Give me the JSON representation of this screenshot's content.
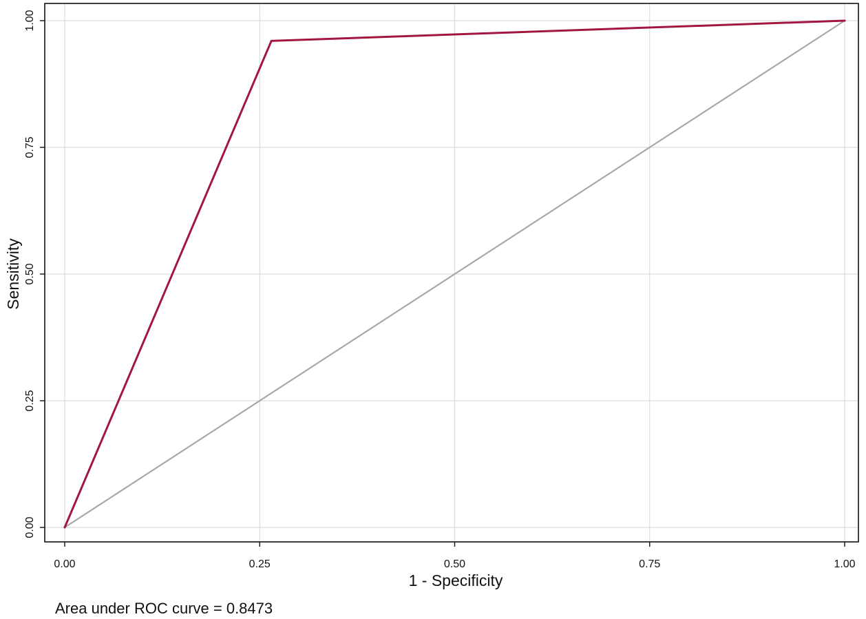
{
  "chart_data": {
    "type": "line",
    "title": "",
    "xlabel": "1 - Specificity",
    "ylabel": "Sensitivity",
    "xlim": [
      0,
      1
    ],
    "ylim": [
      0,
      1
    ],
    "x_ticks": [
      "0.00",
      "0.25",
      "0.50",
      "0.75",
      "1.00"
    ],
    "y_ticks": [
      "0.00",
      "0.25",
      "0.50",
      "0.75",
      "1.00"
    ],
    "grid": true,
    "legend": "none",
    "series": [
      {
        "role": "roc-curve",
        "color": "#a3163f",
        "x": [
          0.0,
          0.265,
          1.0
        ],
        "y": [
          0.0,
          0.96,
          1.0
        ]
      },
      {
        "role": "reference-line",
        "color": "#a8a8a8",
        "x": [
          0.0,
          1.0
        ],
        "y": [
          0.0,
          1.0
        ]
      }
    ],
    "annotation": "Area under ROC curve = 0.8473"
  }
}
